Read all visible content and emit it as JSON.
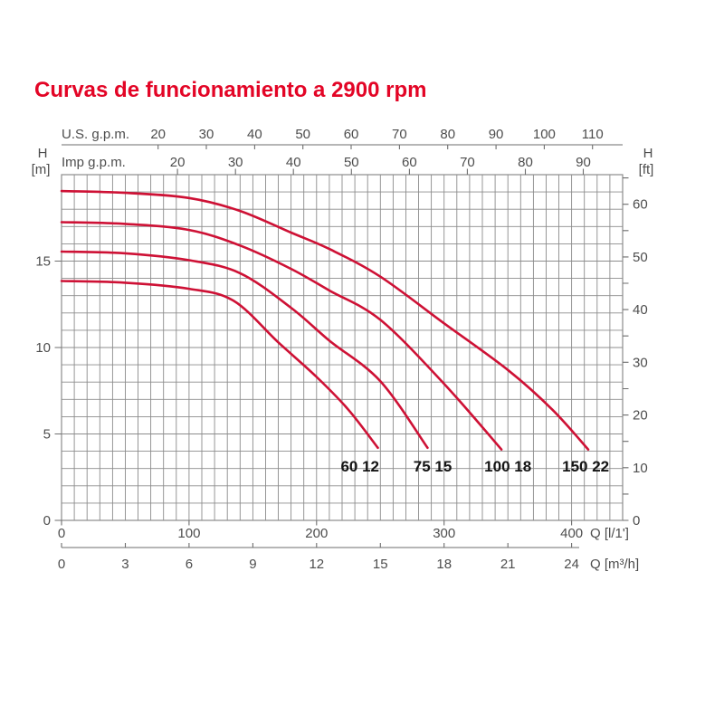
{
  "title": "Curvas de funcionamiento a 2900 rpm",
  "colors": {
    "title": "#e30526",
    "curve": "#ce1135",
    "grid": "#8c8c8c",
    "axis_line": "#6e6e6e",
    "axis_text": "#4d4d4d",
    "curve_label": "#141414",
    "background": "#ffffff"
  },
  "chart_data": {
    "type": "line",
    "title": "Curvas de funcionamiento a 2900 rpm",
    "grid": "on",
    "x_axis_bottom_primary": {
      "label": "Q [l/1']",
      "unit": "l/1'",
      "ticks": [
        0,
        100,
        200,
        300,
        400
      ],
      "range": [
        0,
        440
      ],
      "grid_step": 10
    },
    "x_axis_bottom_secondary": {
      "label": "Q [m³/h]",
      "unit": "m3/h",
      "ticks": [
        0,
        3,
        6,
        9,
        12,
        15,
        18,
        21,
        24
      ],
      "lmin_per_unit": 16.6667
    },
    "x_axis_top_us": {
      "label": "U.S. g.p.m.",
      "ticks": [
        20,
        30,
        40,
        50,
        60,
        70,
        80,
        90,
        100,
        110
      ],
      "lmin_per_unit": 3.78541
    },
    "x_axis_top_imp": {
      "label": "Imp g.p.m.",
      "ticks": [
        20,
        30,
        40,
        50,
        60,
        70,
        80,
        90
      ],
      "lmin_per_unit": 4.54609
    },
    "y_axis_left": {
      "label_line1": "H",
      "label_line2": "[m]",
      "ticks": [
        0,
        5,
        10,
        15
      ],
      "range": [
        0,
        20
      ],
      "grid_step": 1
    },
    "y_axis_right": {
      "label_line1": "H",
      "label_line2": "[ft]",
      "ticks": [
        0,
        10,
        20,
        30,
        40,
        50,
        60
      ],
      "minor_step": 5,
      "max_minor": 65,
      "m_per_ft": 0.3048
    },
    "series": [
      {
        "name": "60 12",
        "label_q": 234,
        "label_h": 3.1,
        "points": [
          [
            0,
            13.85
          ],
          [
            50,
            13.75
          ],
          [
            100,
            13.4
          ],
          [
            135,
            12.7
          ],
          [
            170,
            10.3
          ],
          [
            200,
            8.3
          ],
          [
            225,
            6.4
          ],
          [
            248,
            4.2
          ]
        ]
      },
      {
        "name": "75 15",
        "label_q": 291,
        "label_h": 3.1,
        "points": [
          [
            0,
            15.55
          ],
          [
            50,
            15.45
          ],
          [
            100,
            15.05
          ],
          [
            140,
            14.3
          ],
          [
            180,
            12.3
          ],
          [
            210,
            10.4
          ],
          [
            250,
            8.05
          ],
          [
            287,
            4.2
          ]
        ]
      },
      {
        "name": "100 18",
        "label_q": 350,
        "label_h": 3.1,
        "points": [
          [
            0,
            17.25
          ],
          [
            50,
            17.15
          ],
          [
            100,
            16.8
          ],
          [
            140,
            15.9
          ],
          [
            180,
            14.55
          ],
          [
            210,
            13.3
          ],
          [
            250,
            11.6
          ],
          [
            300,
            7.9
          ],
          [
            345,
            4.1
          ]
        ]
      },
      {
        "name": "150 22",
        "label_q": 411,
        "label_h": 3.1,
        "points": [
          [
            0,
            19.05
          ],
          [
            50,
            18.95
          ],
          [
            100,
            18.65
          ],
          [
            140,
            17.9
          ],
          [
            180,
            16.65
          ],
          [
            210,
            15.7
          ],
          [
            250,
            14.1
          ],
          [
            300,
            11.4
          ],
          [
            350,
            8.7
          ],
          [
            385,
            6.4
          ],
          [
            413,
            4.1
          ]
        ]
      }
    ]
  }
}
